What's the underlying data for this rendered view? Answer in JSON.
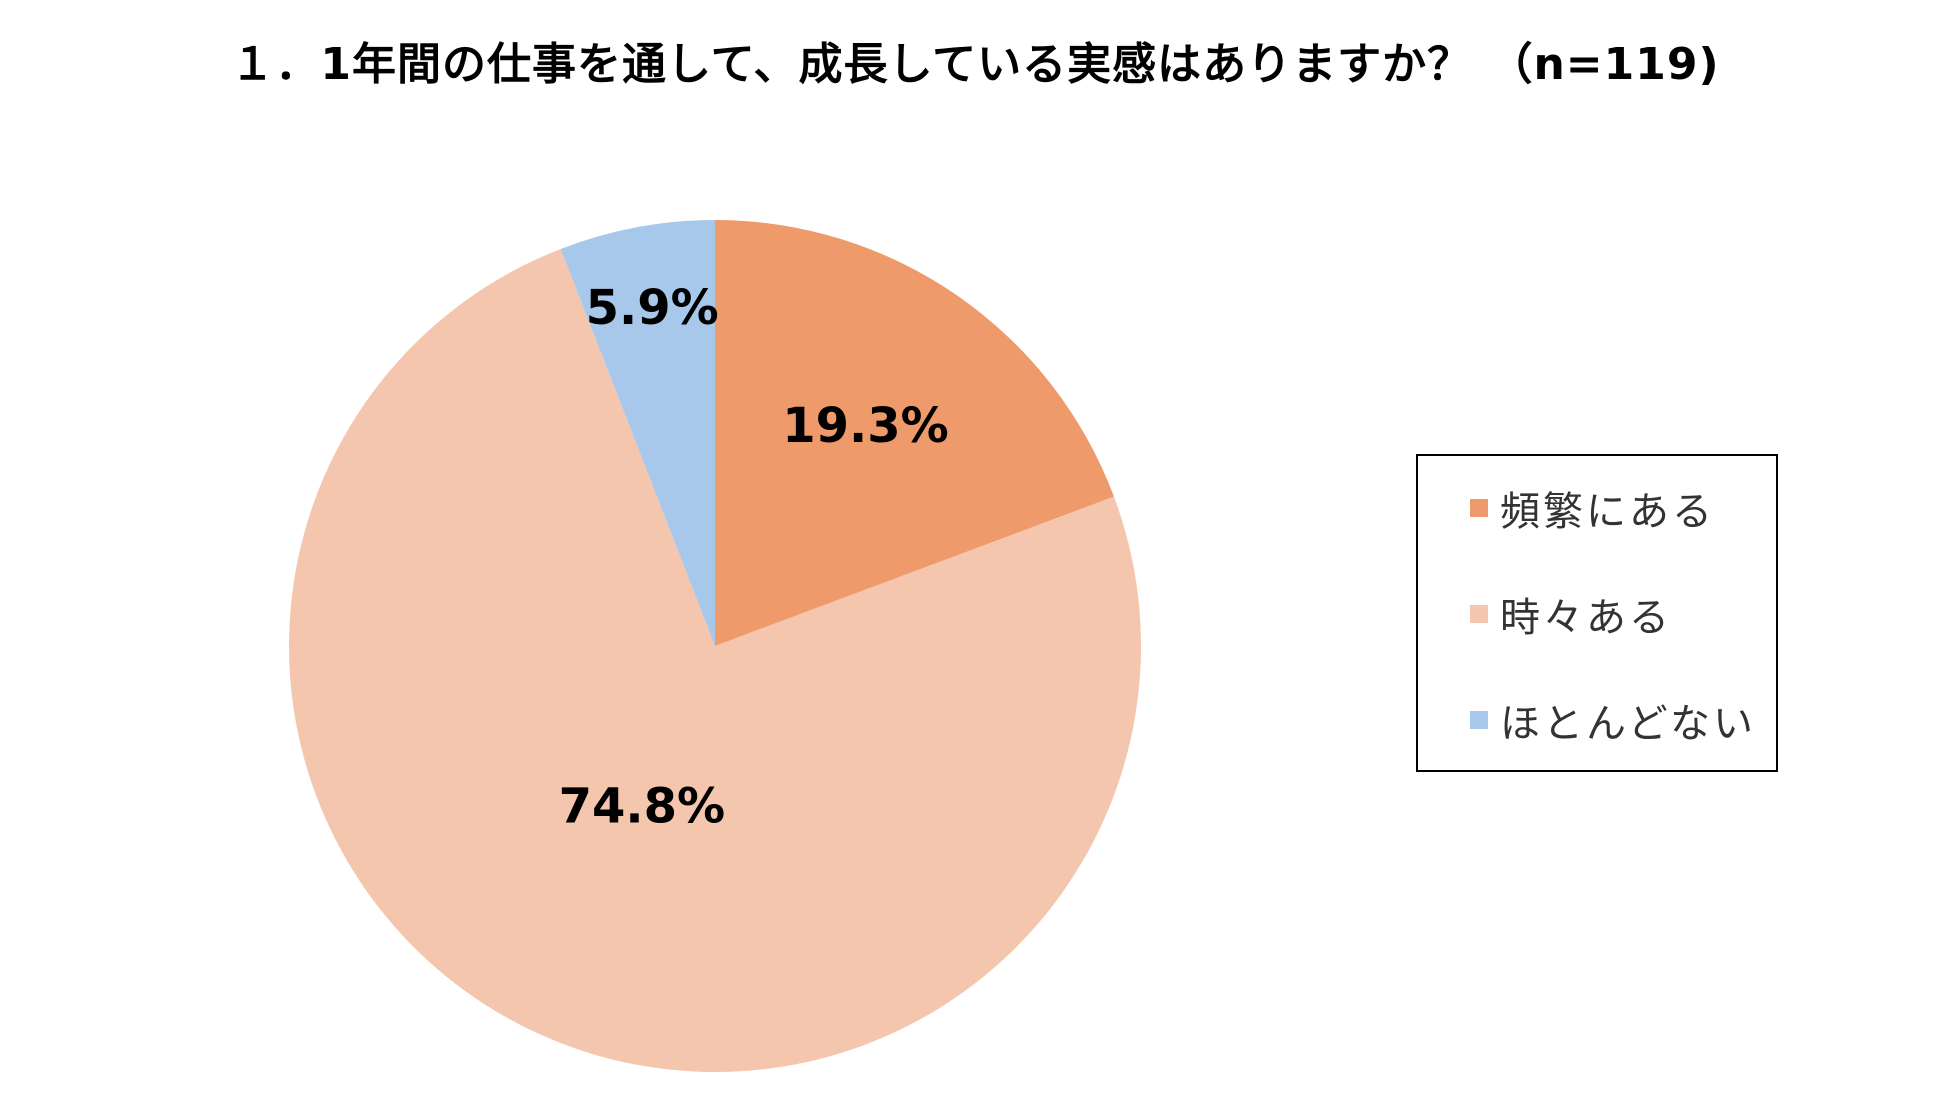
{
  "chart_data": {
    "type": "pie",
    "title": "１．1年間の仕事を通して、成長している実感はありますか？ （n=119)",
    "categories": [
      "頻繁にある",
      "時々ある",
      "ほとんどない"
    ],
    "values": [
      19.3,
      74.8,
      5.9
    ],
    "data_labels": [
      "19.3%",
      "74.8%",
      "5.9%"
    ],
    "colors": [
      "#EE9A6A",
      "#F5C6AE",
      "#A7C8EA"
    ],
    "start_angle": "12 o'clock",
    "direction": "clockwise",
    "legend_position": "right"
  }
}
